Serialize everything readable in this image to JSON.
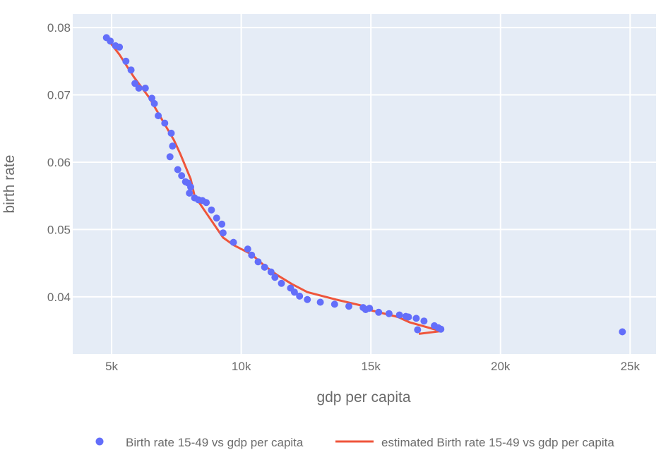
{
  "colors": {
    "plot_bg": "#e5ecf6",
    "grid": "#ffffff",
    "marker": "#636efa",
    "line": "#ef553b",
    "text": "#6b6b6b"
  },
  "chart_data": {
    "type": "scatter",
    "title": "",
    "xlabel": "gdp per capita",
    "ylabel": "birth rate",
    "xlim": [
      3500,
      26000
    ],
    "ylim": [
      0.0315,
      0.082
    ],
    "x_ticks": [
      5000,
      10000,
      15000,
      20000,
      25000
    ],
    "x_tick_labels": [
      "5k",
      "10k",
      "15k",
      "20k",
      "25k"
    ],
    "y_ticks": [
      0.04,
      0.05,
      0.06,
      0.07,
      0.08
    ],
    "y_tick_labels": [
      "0.04",
      "0.05",
      "0.06",
      "0.07",
      "0.08"
    ],
    "grid": true,
    "legend_position": "bottom",
    "series": [
      {
        "name": "Birth rate 15-49 vs gdp per capita",
        "mode": "markers",
        "points": [
          [
            4800,
            0.0785
          ],
          [
            4950,
            0.078
          ],
          [
            5150,
            0.0773
          ],
          [
            5300,
            0.0771
          ],
          [
            5550,
            0.075
          ],
          [
            5750,
            0.0737
          ],
          [
            5900,
            0.0717
          ],
          [
            6050,
            0.071
          ],
          [
            6300,
            0.071
          ],
          [
            6550,
            0.0695
          ],
          [
            6650,
            0.0687
          ],
          [
            6800,
            0.0669
          ],
          [
            7050,
            0.0658
          ],
          [
            7300,
            0.0643
          ],
          [
            7350,
            0.0624
          ],
          [
            7250,
            0.0608
          ],
          [
            7550,
            0.0589
          ],
          [
            7700,
            0.058
          ],
          [
            7850,
            0.0571
          ],
          [
            7950,
            0.0569
          ],
          [
            8050,
            0.0563
          ],
          [
            8000,
            0.0554
          ],
          [
            8200,
            0.0547
          ],
          [
            8350,
            0.0544
          ],
          [
            8500,
            0.0543
          ],
          [
            8650,
            0.054
          ],
          [
            8850,
            0.0529
          ],
          [
            9050,
            0.0517
          ],
          [
            9250,
            0.0508
          ],
          [
            9300,
            0.0495
          ],
          [
            9700,
            0.0481
          ],
          [
            10250,
            0.0471
          ],
          [
            10400,
            0.0462
          ],
          [
            10650,
            0.0452
          ],
          [
            10900,
            0.0444
          ],
          [
            11150,
            0.0437
          ],
          [
            11300,
            0.0429
          ],
          [
            11550,
            0.042
          ],
          [
            11900,
            0.0413
          ],
          [
            12050,
            0.0407
          ],
          [
            12250,
            0.0401
          ],
          [
            12550,
            0.0396
          ],
          [
            13050,
            0.0392
          ],
          [
            13600,
            0.0389
          ],
          [
            14150,
            0.0386
          ],
          [
            14700,
            0.0384
          ],
          [
            14800,
            0.0381
          ],
          [
            14950,
            0.0383
          ],
          [
            15300,
            0.0377
          ],
          [
            15700,
            0.0375
          ],
          [
            16100,
            0.0373
          ],
          [
            16350,
            0.0371
          ],
          [
            16450,
            0.037
          ],
          [
            16750,
            0.0368
          ],
          [
            17050,
            0.0364
          ],
          [
            16800,
            0.0351
          ],
          [
            17450,
            0.0357
          ],
          [
            17600,
            0.0354
          ],
          [
            17700,
            0.0352
          ],
          [
            24700,
            0.0348
          ]
        ]
      },
      {
        "name": "estimated Birth rate 15-49 vs gdp per capita",
        "mode": "lines",
        "points": [
          [
            4800,
            0.0785
          ],
          [
            5300,
            0.076
          ],
          [
            5850,
            0.0727
          ],
          [
            6450,
            0.0696
          ],
          [
            7400,
            0.0633
          ],
          [
            7650,
            0.0612
          ],
          [
            8050,
            0.0575
          ],
          [
            8200,
            0.055
          ],
          [
            8750,
            0.0519
          ],
          [
            9300,
            0.0488
          ],
          [
            9700,
            0.0477
          ],
          [
            10400,
            0.0463
          ],
          [
            10900,
            0.0446
          ],
          [
            11400,
            0.0432
          ],
          [
            11950,
            0.0419
          ],
          [
            12550,
            0.0407
          ],
          [
            13650,
            0.0396
          ],
          [
            14750,
            0.0386
          ],
          [
            15000,
            0.038
          ],
          [
            16050,
            0.037
          ],
          [
            16500,
            0.0362
          ],
          [
            17700,
            0.0349
          ],
          [
            16850,
            0.0345
          ]
        ]
      }
    ]
  }
}
